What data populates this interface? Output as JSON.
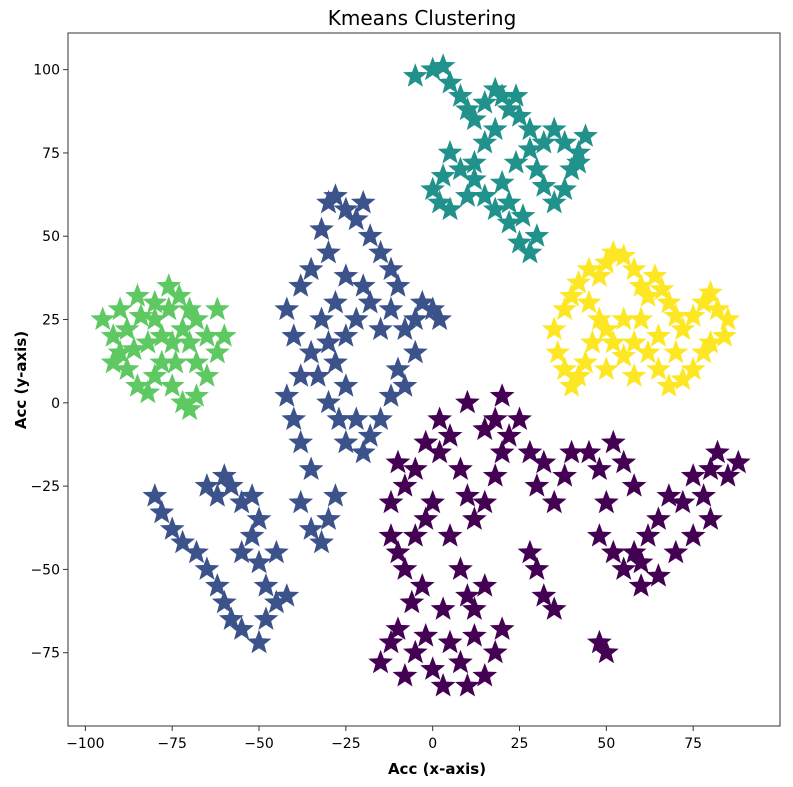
{
  "chart_data": {
    "type": "scatter",
    "title": "Kmeans Clustering",
    "xlabel": "Acc (x-axis)",
    "ylabel": "Acc (y-axis)",
    "xlim": [
      -105,
      100
    ],
    "ylim": [
      -97,
      111
    ],
    "xticks": [
      -100,
      -75,
      -50,
      -25,
      0,
      25,
      50,
      75
    ],
    "yticks": [
      -75,
      -50,
      -25,
      0,
      25,
      50,
      75,
      100
    ],
    "grid": false,
    "marker": "star",
    "series": [
      {
        "color": "#440154",
        "points": [
          [
            -15,
            -78
          ],
          [
            -12,
            -72
          ],
          [
            -10,
            -68
          ],
          [
            -8,
            -82
          ],
          [
            -5,
            -75
          ],
          [
            -2,
            -70
          ],
          [
            0,
            -80
          ],
          [
            3,
            -85
          ],
          [
            5,
            -72
          ],
          [
            8,
            -78
          ],
          [
            10,
            -85
          ],
          [
            12,
            -70
          ],
          [
            15,
            -82
          ],
          [
            18,
            -75
          ],
          [
            20,
            -68
          ],
          [
            -6,
            -60
          ],
          [
            -3,
            -55
          ],
          [
            -8,
            -50
          ],
          [
            -10,
            -45
          ],
          [
            -5,
            -40
          ],
          [
            -2,
            -35
          ],
          [
            0,
            -30
          ],
          [
            -8,
            -25
          ],
          [
            -10,
            -18
          ],
          [
            -5,
            -20
          ],
          [
            -2,
            -12
          ],
          [
            2,
            -15
          ],
          [
            5,
            -10
          ],
          [
            8,
            -20
          ],
          [
            10,
            -28
          ],
          [
            12,
            -35
          ],
          [
            15,
            -30
          ],
          [
            18,
            -22
          ],
          [
            20,
            -15
          ],
          [
            22,
            -10
          ],
          [
            25,
            -5
          ],
          [
            28,
            -15
          ],
          [
            30,
            -25
          ],
          [
            32,
            -18
          ],
          [
            35,
            -30
          ],
          [
            38,
            -22
          ],
          [
            40,
            -15
          ],
          [
            5,
            -40
          ],
          [
            8,
            -50
          ],
          [
            10,
            -58
          ],
          [
            12,
            -62
          ],
          [
            15,
            -55
          ],
          [
            3,
            -62
          ],
          [
            30,
            -50
          ],
          [
            32,
            -58
          ],
          [
            35,
            -62
          ],
          [
            28,
            -45
          ],
          [
            45,
            -15
          ],
          [
            48,
            -20
          ],
          [
            52,
            -12
          ],
          [
            55,
            -18
          ],
          [
            58,
            -25
          ],
          [
            50,
            -30
          ],
          [
            48,
            -40
          ],
          [
            52,
            -45
          ],
          [
            55,
            -50
          ],
          [
            60,
            -48
          ],
          [
            62,
            -40
          ],
          [
            65,
            -35
          ],
          [
            68,
            -28
          ],
          [
            72,
            -30
          ],
          [
            75,
            -22
          ],
          [
            78,
            -28
          ],
          [
            80,
            -20
          ],
          [
            82,
            -15
          ],
          [
            85,
            -22
          ],
          [
            88,
            -18
          ],
          [
            70,
            -45
          ],
          [
            65,
            -52
          ],
          [
            60,
            -55
          ],
          [
            58,
            -45
          ],
          [
            75,
            -40
          ],
          [
            80,
            -35
          ],
          [
            48,
            -72
          ],
          [
            50,
            -75
          ],
          [
            10,
            0
          ],
          [
            15,
            -8
          ],
          [
            18,
            -5
          ],
          [
            20,
            2
          ],
          [
            2,
            -5
          ],
          [
            -12,
            -30
          ],
          [
            -12,
            -40
          ]
        ]
      },
      {
        "color": "#3b528b",
        "points": [
          [
            -38,
            -30
          ],
          [
            -35,
            -38
          ],
          [
            -32,
            -42
          ],
          [
            -30,
            -35
          ],
          [
            -28,
            -28
          ],
          [
            -35,
            -20
          ],
          [
            -38,
            -12
          ],
          [
            -40,
            -5
          ],
          [
            -42,
            2
          ],
          [
            -38,
            8
          ],
          [
            -35,
            15
          ],
          [
            -40,
            20
          ],
          [
            -42,
            28
          ],
          [
            -38,
            35
          ],
          [
            -35,
            40
          ],
          [
            -30,
            45
          ],
          [
            -32,
            52
          ],
          [
            -30,
            60
          ],
          [
            -28,
            62
          ],
          [
            -25,
            58
          ],
          [
            -22,
            55
          ],
          [
            -20,
            60
          ],
          [
            -18,
            50
          ],
          [
            -15,
            45
          ],
          [
            -12,
            40
          ],
          [
            -10,
            35
          ],
          [
            -12,
            28
          ],
          [
            -8,
            22
          ],
          [
            -5,
            15
          ],
          [
            -10,
            10
          ],
          [
            -12,
            2
          ],
          [
            -15,
            -5
          ],
          [
            -18,
            -10
          ],
          [
            -20,
            -15
          ],
          [
            -22,
            -5
          ],
          [
            -25,
            5
          ],
          [
            -28,
            12
          ],
          [
            -25,
            20
          ],
          [
            -22,
            25
          ],
          [
            -18,
            30
          ],
          [
            -15,
            22
          ],
          [
            -20,
            35
          ],
          [
            -25,
            38
          ],
          [
            -28,
            30
          ],
          [
            -32,
            25
          ],
          [
            -30,
            18
          ],
          [
            -33,
            8
          ],
          [
            -30,
            0
          ],
          [
            -27,
            -5
          ],
          [
            -25,
            -12
          ],
          [
            -3,
            30
          ],
          [
            -5,
            25
          ],
          [
            0,
            28
          ],
          [
            2,
            25
          ],
          [
            -8,
            5
          ],
          [
            -60,
            -22
          ],
          [
            -62,
            -28
          ],
          [
            -65,
            -25
          ],
          [
            -55,
            -30
          ],
          [
            -58,
            -25
          ],
          [
            -52,
            -28
          ],
          [
            -80,
            -28
          ],
          [
            -78,
            -33
          ],
          [
            -75,
            -38
          ],
          [
            -72,
            -42
          ],
          [
            -68,
            -45
          ],
          [
            -65,
            -50
          ],
          [
            -62,
            -55
          ],
          [
            -60,
            -60
          ],
          [
            -58,
            -65
          ],
          [
            -55,
            -68
          ],
          [
            -50,
            -72
          ],
          [
            -48,
            -65
          ],
          [
            -45,
            -60
          ],
          [
            -42,
            -58
          ],
          [
            -55,
            -45
          ],
          [
            -52,
            -40
          ],
          [
            -50,
            -48
          ],
          [
            -48,
            -55
          ],
          [
            -45,
            -45
          ],
          [
            -50,
            -35
          ]
        ]
      },
      {
        "color": "#21918c",
        "points": [
          [
            0,
            100
          ],
          [
            -5,
            98
          ],
          [
            3,
            101
          ],
          [
            5,
            96
          ],
          [
            8,
            92
          ],
          [
            10,
            88
          ],
          [
            12,
            85
          ],
          [
            15,
            90
          ],
          [
            18,
            94
          ],
          [
            20,
            92
          ],
          [
            22,
            88
          ],
          [
            18,
            82
          ],
          [
            15,
            78
          ],
          [
            12,
            72
          ],
          [
            8,
            70
          ],
          [
            5,
            75
          ],
          [
            3,
            68
          ],
          [
            0,
            64
          ],
          [
            2,
            60
          ],
          [
            5,
            58
          ],
          [
            10,
            62
          ],
          [
            12,
            67
          ],
          [
            15,
            62
          ],
          [
            18,
            58
          ],
          [
            22,
            54
          ],
          [
            25,
            48
          ],
          [
            28,
            45
          ],
          [
            30,
            50
          ],
          [
            26,
            56
          ],
          [
            22,
            60
          ],
          [
            20,
            66
          ],
          [
            24,
            72
          ],
          [
            28,
            76
          ],
          [
            30,
            70
          ],
          [
            32,
            65
          ],
          [
            35,
            60
          ],
          [
            38,
            64
          ],
          [
            40,
            70
          ],
          [
            42,
            75
          ],
          [
            44,
            80
          ],
          [
            42,
            72
          ],
          [
            38,
            78
          ],
          [
            35,
            82
          ],
          [
            32,
            78
          ],
          [
            28,
            82
          ],
          [
            25,
            86
          ],
          [
            24,
            92
          ]
        ]
      },
      {
        "color": "#5ec962",
        "points": [
          [
            -95,
            25
          ],
          [
            -92,
            20
          ],
          [
            -90,
            15
          ],
          [
            -88,
            10
          ],
          [
            -85,
            5
          ],
          [
            -82,
            3
          ],
          [
            -80,
            8
          ],
          [
            -78,
            12
          ],
          [
            -75,
            18
          ],
          [
            -72,
            22
          ],
          [
            -70,
            28
          ],
          [
            -73,
            32
          ],
          [
            -76,
            35
          ],
          [
            -80,
            30
          ],
          [
            -84,
            26
          ],
          [
            -88,
            22
          ],
          [
            -90,
            28
          ],
          [
            -85,
            32
          ],
          [
            -80,
            25
          ],
          [
            -76,
            28
          ],
          [
            -70,
            18
          ],
          [
            -68,
            12
          ],
          [
            -65,
            8
          ],
          [
            -68,
            2
          ],
          [
            -72,
            0
          ],
          [
            -75,
            5
          ],
          [
            -70,
            -2
          ],
          [
            -68,
            25
          ],
          [
            -65,
            20
          ],
          [
            -62,
            15
          ],
          [
            -60,
            20
          ],
          [
            -62,
            28
          ],
          [
            -86,
            16
          ],
          [
            -82,
            18
          ],
          [
            -78,
            20
          ],
          [
            -74,
            12
          ],
          [
            -92,
            12
          ]
        ]
      },
      {
        "color": "#fde725",
        "points": [
          [
            35,
            22
          ],
          [
            38,
            28
          ],
          [
            40,
            32
          ],
          [
            42,
            36
          ],
          [
            45,
            40
          ],
          [
            48,
            38
          ],
          [
            50,
            42
          ],
          [
            52,
            45
          ],
          [
            55,
            44
          ],
          [
            58,
            40
          ],
          [
            60,
            35
          ],
          [
            62,
            32
          ],
          [
            64,
            38
          ],
          [
            66,
            34
          ],
          [
            68,
            30
          ],
          [
            70,
            26
          ],
          [
            72,
            22
          ],
          [
            75,
            26
          ],
          [
            78,
            30
          ],
          [
            80,
            33
          ],
          [
            82,
            28
          ],
          [
            85,
            25
          ],
          [
            84,
            20
          ],
          [
            80,
            18
          ],
          [
            78,
            15
          ],
          [
            75,
            10
          ],
          [
            72,
            7
          ],
          [
            68,
            5
          ],
          [
            65,
            10
          ],
          [
            62,
            15
          ],
          [
            58,
            18
          ],
          [
            55,
            14
          ],
          [
            52,
            18
          ],
          [
            50,
            22
          ],
          [
            48,
            25
          ],
          [
            46,
            18
          ],
          [
            44,
            12
          ],
          [
            42,
            8
          ],
          [
            40,
            5
          ],
          [
            38,
            10
          ],
          [
            36,
            15
          ],
          [
            55,
            25
          ],
          [
            60,
            25
          ],
          [
            65,
            20
          ],
          [
            45,
            30
          ],
          [
            70,
            15
          ],
          [
            58,
            8
          ],
          [
            50,
            10
          ]
        ]
      }
    ]
  }
}
